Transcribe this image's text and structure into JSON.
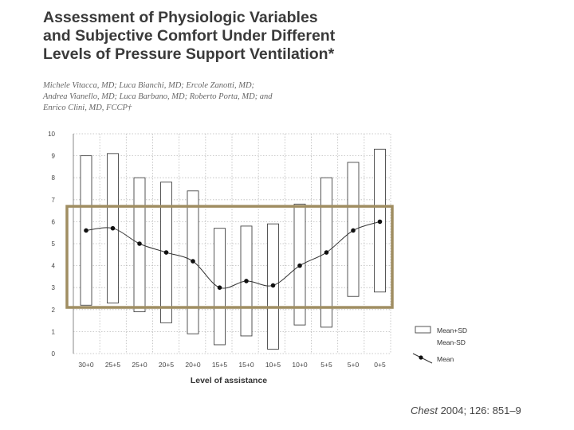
{
  "header": {
    "title_lines": [
      "Assessment of Physiologic Variables",
      "and Subjective Comfort Under Different",
      "Levels of Pressure Support Ventilation*"
    ],
    "author_lines": [
      "Michele Vitacca, MD; Luca Bianchi, MD; Ercole Zanotti, MD;",
      "Andrea Vianello, MD; Luca Barbano, MD; Roberto Porta, MD; and",
      "Enrico Clini, MD, FCCP†"
    ]
  },
  "citation": {
    "journal": "Chest",
    "details": " 2004; 126: 851–9"
  },
  "colors": {
    "highlight_box": "#a08e62",
    "bar_stroke": "#444444",
    "grid": "#bbbbbb",
    "axis_text": "#444444"
  },
  "chart_data": {
    "type": "box-range-with-mean-line",
    "xlabel": "Level of assistance",
    "ylabel": "",
    "ylim": [
      0,
      10
    ],
    "yticks": [
      0,
      1,
      2,
      3,
      4,
      5,
      6,
      7,
      8,
      9,
      10
    ],
    "categories": [
      "30+0",
      "25+5",
      "25+0",
      "20+5",
      "20+0",
      "15+5",
      "15+0",
      "10+5",
      "10+0",
      "5+5",
      "5+0",
      "0+5"
    ],
    "series": [
      {
        "name": "Mean+SD",
        "values": [
          9.0,
          9.1,
          8.0,
          7.8,
          7.4,
          5.7,
          5.8,
          5.9,
          6.8,
          8.0,
          8.7,
          9.3
        ]
      },
      {
        "name": "Mean-SD",
        "values": [
          2.2,
          2.3,
          1.9,
          1.4,
          0.9,
          0.4,
          0.8,
          0.2,
          1.3,
          1.2,
          2.6,
          2.8
        ]
      },
      {
        "name": "Mean",
        "values": [
          5.6,
          5.7,
          5.0,
          4.6,
          4.2,
          3.0,
          3.3,
          3.1,
          4.0,
          4.6,
          5.6,
          6.0
        ]
      }
    ],
    "legend": {
      "position": "bottom-right",
      "entries": [
        "Mean+SD",
        "Mean-SD",
        "Mean"
      ]
    },
    "annotation": {
      "type": "highlight-rectangle",
      "y_range": [
        2.1,
        6.7
      ],
      "x_span": "30+0 to 0+5"
    },
    "grid": true
  }
}
